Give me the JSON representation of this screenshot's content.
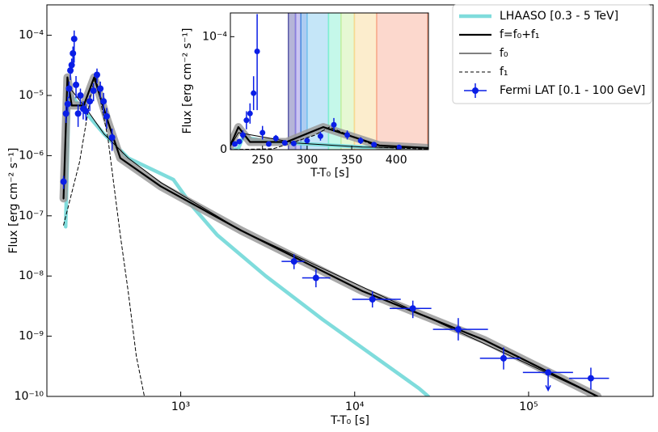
{
  "chart_data": {
    "type": "line",
    "xlabel": "T-T₀ [s]",
    "ylabel": "Flux [erg cm⁻² s⁻¹]",
    "log_x": true,
    "log_y": true,
    "xlim": [
      170,
      520000
    ],
    "ylim": [
      1e-10,
      0.00032
    ],
    "xticks": [
      {
        "value": 1000,
        "label": "10³"
      },
      {
        "value": 10000,
        "label": "10⁴"
      },
      {
        "value": 100000,
        "label": "10⁵"
      }
    ],
    "yticks": [
      {
        "value": 0.0001,
        "label": "10⁻⁴"
      },
      {
        "value": 1e-05,
        "label": "10⁻⁵"
      },
      {
        "value": 1e-06,
        "label": "10⁻⁶"
      },
      {
        "value": 1e-07,
        "label": "10⁻⁷"
      },
      {
        "value": 1e-08,
        "label": "10⁻⁸"
      },
      {
        "value": 1e-09,
        "label": "10⁻⁹"
      },
      {
        "value": 1e-10,
        "label": "10⁻¹⁰"
      }
    ],
    "legend": "upper right",
    "series": [
      {
        "name": "LHAASO [0.3 - 5 TeV]",
        "color": "#7fdcdc",
        "style": "solid",
        "width": 4.5,
        "x": [
          218,
          223,
          228,
          262,
          362,
          499,
          907,
          1175,
          1620,
          3080,
          6540,
          23500,
          26500
        ],
        "values": [
          6.6e-08,
          1e-06,
          1.1e-05,
          6.8e-06,
          2.3e-06,
          9.1e-07,
          4e-07,
          1.4e-07,
          4.8e-08,
          1e-08,
          1.9e-09,
          1.35e-10,
          1e-10
        ]
      },
      {
        "name": "f=f₀+f₁",
        "color": "#000000",
        "style": "solid",
        "width": 2.2,
        "band_color": "#9a9a9a",
        "x": [
          212,
          223,
          236,
          277,
          318,
          381,
          449,
          765,
          2230,
          11100,
          55400,
          249000
        ],
        "values": [
          1.95e-07,
          2e-05,
          6.8e-06,
          6.8e-06,
          2e-05,
          3.7e-06,
          9.1e-07,
          3.1e-07,
          5.7e-08,
          5.6e-09,
          8.7e-10,
          1e-10
        ]
      },
      {
        "name": "f₀",
        "color": "#000000",
        "style": "solid",
        "width": 1,
        "x": [
          212,
          223,
          289,
          362,
          499,
          765,
          2230,
          249000
        ],
        "values": [
          1.9e-07,
          1.5e-05,
          5.8e-06,
          2.3e-06,
          9.1e-07,
          3.6e-07,
          5.7e-08,
          1e-10
        ]
      },
      {
        "name": "f₁",
        "color": "#000000",
        "style": "dashed",
        "width": 1,
        "x": [
          212,
          262,
          308,
          325,
          381,
          449,
          499,
          555,
          618
        ],
        "values": [
          7e-08,
          7.8e-07,
          1.26e-05,
          2e-05,
          2e-06,
          4.8e-08,
          5.5e-09,
          4.7e-10,
          1e-10
        ]
      },
      {
        "name": "Fermi LAT [0.1 - 100 GeV]",
        "color": "#0a1ee6",
        "style": "errorbar",
        "x": [
          212,
          219,
          224,
          228,
          232,
          236,
          240,
          244,
          250,
          257,
          265,
          275,
          285,
          300,
          315,
          330,
          345,
          360,
          375,
          403,
          4480,
          5990,
          12650,
          21600,
          39400,
          71800,
          129500,
          228000
        ],
        "values": [
          3.7e-07,
          5e-06,
          7.2e-06,
          1.3e-05,
          2.6e-05,
          3.2e-05,
          5e-05,
          8.7e-05,
          1.5e-05,
          5e-06,
          1e-05,
          6e-06,
          5.5e-06,
          8e-06,
          1.2e-05,
          2.2e-05,
          1.3e-05,
          8e-06,
          4.5e-06,
          2e-06,
          1.75e-08,
          9.3e-09,
          4.1e-09,
          2.9e-09,
          1.3e-09,
          4.3e-10,
          2.5e-10,
          2e-10
        ],
        "y_low": [
          2.8e-07,
          3.5e-06,
          5e-06,
          9e-06,
          1.8e-05,
          2.3e-05,
          3.5e-05,
          3.5e-05,
          9e-06,
          3e-06,
          7e-06,
          4e-06,
          3.8e-06,
          5.5e-06,
          8e-06,
          1.6e-05,
          9e-06,
          5e-06,
          2.8e-06,
          1.2e-06,
          1.3e-08,
          6.5e-09,
          3e-09,
          2e-09,
          8.5e-10,
          2.8e-10,
          null,
          1.3e-10
        ],
        "y_high": [
          4.6e-07,
          6.5e-06,
          9.5e-06,
          1.7e-05,
          3.4e-05,
          4.1e-05,
          6.5e-05,
          0.00012,
          2.1e-05,
          7e-06,
          1.3e-05,
          8e-06,
          7.2e-06,
          1e-05,
          1.6e-05,
          2.8e-05,
          1.7e-05,
          1.1e-05,
          6.2e-06,
          2.8e-06,
          2.3e-08,
          1.3e-08,
          5.6e-09,
          3.9e-09,
          2e-09,
          6.5e-10,
          null,
          3e-10
        ],
        "x_low": [
          null,
          null,
          null,
          null,
          null,
          null,
          null,
          null,
          null,
          null,
          null,
          null,
          null,
          null,
          null,
          null,
          null,
          null,
          null,
          null,
          3800,
          4990,
          9680,
          15900,
          28200,
          52500,
          92700,
          171000
        ],
        "x_high": [
          null,
          null,
          null,
          null,
          null,
          null,
          null,
          null,
          null,
          null,
          null,
          null,
          null,
          null,
          null,
          null,
          null,
          null,
          null,
          null,
          5140,
          7240,
          18400,
          27600,
          58400,
          89500,
          180000,
          290000
        ],
        "upper_limit": [
          false,
          false,
          false,
          false,
          false,
          false,
          false,
          false,
          false,
          false,
          false,
          false,
          false,
          false,
          false,
          false,
          false,
          false,
          false,
          false,
          false,
          false,
          false,
          false,
          false,
          false,
          true,
          false
        ]
      }
    ],
    "inset": {
      "xlabel": "T-T₀ [s]",
      "ylabel": "Flux [erg cm⁻² s⁻¹]",
      "xlim": [
        214,
        436
      ],
      "ylim": [
        0,
        0.000121
      ],
      "xticks": [
        250,
        300,
        350,
        400
      ],
      "yticks": [
        0,
        {
          "value": 0.0001,
          "label": "10⁻⁴"
        }
      ],
      "bands": [
        {
          "x0": 279,
          "x1": 287,
          "color": "#5a5aa8"
        },
        {
          "x0": 287,
          "x1": 293,
          "color": "#8a7ee0"
        },
        {
          "x0": 293,
          "x1": 300,
          "color": "#4a8fe0"
        },
        {
          "x0": 300,
          "x1": 324,
          "color": "#7fc8f0"
        },
        {
          "x0": 324,
          "x1": 338,
          "color": "#7ff0d0"
        },
        {
          "x0": 338,
          "x1": 353,
          "color": "#c8f0a0"
        },
        {
          "x0": 353,
          "x1": 378,
          "color": "#f8d890"
        },
        {
          "x0": 378,
          "x1": 435,
          "color": "#f8a890"
        }
      ]
    }
  }
}
